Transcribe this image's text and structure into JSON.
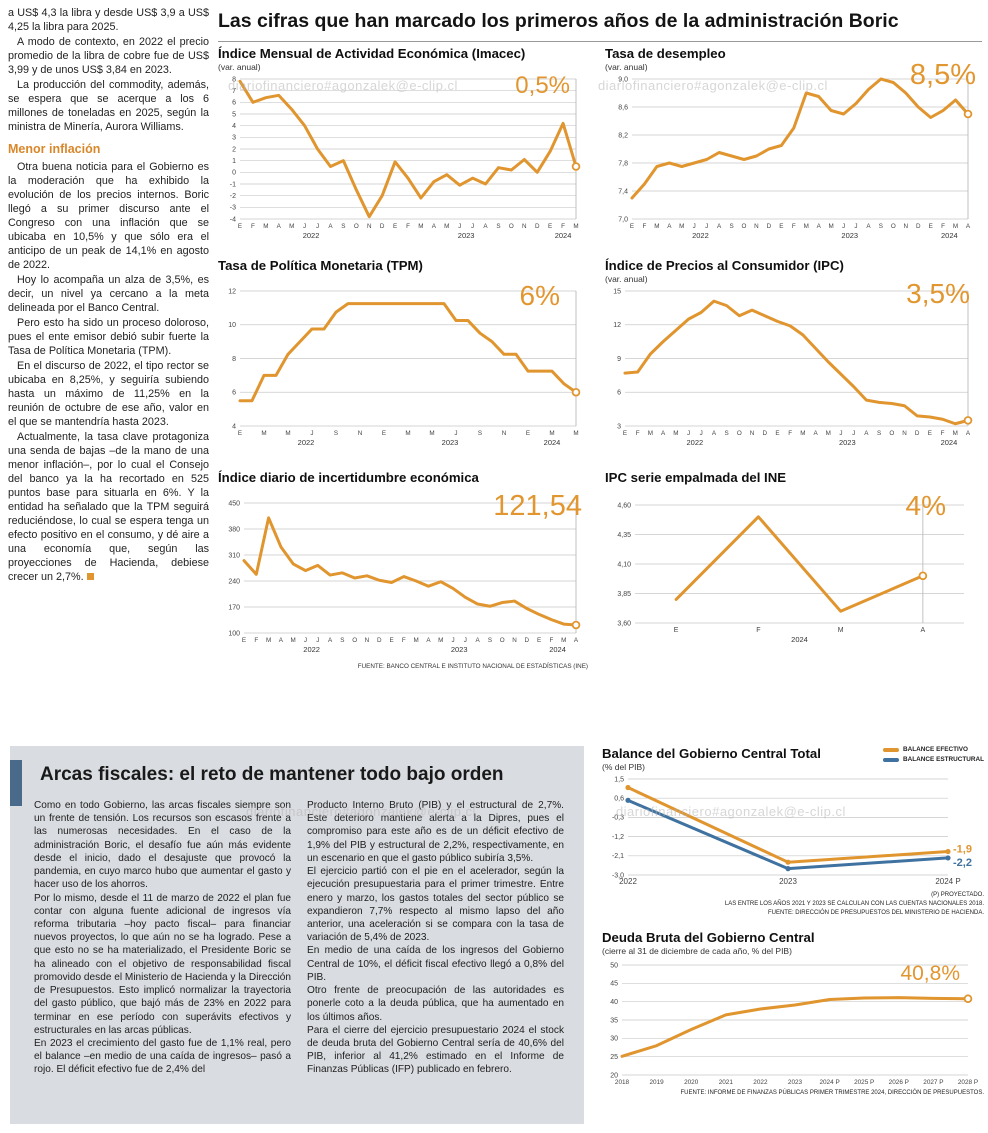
{
  "main_title": "Las cifras que han marcado los primeros años de la administración Boric",
  "watermark": "diariofinanciero#agonzalek@e-clip.cl",
  "colors": {
    "accent_orange": "#E0952F",
    "accent_blue": "#3F72A0",
    "box_background": "#D9DCE0",
    "box_accent_bar": "#4A6A8C"
  },
  "article": {
    "p0": "a US$ 4,3 la libra y desde US$ 3,9 a US$ 4,25 la libra para 2025.",
    "p1": "A modo de contexto, en 2022 el precio promedio de la libra de cobre fue de US$ 3,99 y de unos US$ 3,84 en 2023.",
    "p2": "La producción del commodity, además, se espera que se acerque a los 6 millones de toneladas en 2025, según la ministra de Minería, Aurora Williams.",
    "heading": "Menor inflación",
    "p3": "Otra buena noticia para el Gobierno es la moderación que ha exhibido la evolución de los precios internos. Boric llegó a su primer discurso ante el Congreso con una inflación que se ubicaba en 10,5% y que sólo era el anticipo de un peak de 14,1% en agosto de 2022.",
    "p4": "Hoy lo acompaña un alza de 3,5%, es decir, un nivel ya cercano a la meta delineada por el Banco Central.",
    "p5": "Pero esto ha sido un proceso doloroso, pues el ente emisor debió subir fuerte la Tasa de Política Monetaria (TPM).",
    "p6": "En el discurso de 2022, el tipo rector se ubicaba en 8,25%, y seguiría subiendo hasta un máximo de 11,25% en la reunión de octubre de ese año, valor en el que se mantendría hasta 2023.",
    "p7": "Actualmente, la tasa clave protagoniza una senda de bajas –de la mano de una menor inflación–, por lo cual el Consejo del banco ya la ha recortado en 525 puntos base para situarla en 6%. Y la entidad ha señalado que la TPM seguirá reduciéndose, lo cual se espera tenga un efecto positivo en el consumo, y dé aire a una economía que, según las proyecciones de Hacienda, debiese crecer un 2,7%."
  },
  "sources": {
    "ine": "FUENTE: BANCO CENTRAL E INSTITUTO NACIONAL DE ESTADÍSTICAS (INE)"
  },
  "box": {
    "title": "Arcas fiscales: el reto de mantener todo bajo orden",
    "col1": {
      "p0": "Como en todo Gobierno, las arcas fiscales siempre son un frente de tensión. Los recursos son escasos frente a las numerosas necesidades. En el caso de la administración Boric, el desafío fue aún más evidente desde el inicio, dado el desajuste que provocó la pandemia, en cuyo marco hubo que aumentar el gasto y hacer uso de los ahorros.",
      "p1": "Por lo mismo, desde el 11 de marzo de 2022 el plan fue contar con alguna fuente adicional de ingresos vía reforma tributaria –hoy pacto fiscal– para financiar nuevos proyectos, lo que aún no se ha logrado. Pese a que esto no se ha materializado, el Presidente Boric se ha alineado con el objetivo de responsabilidad fiscal promovido desde el Ministerio de Hacienda y la Dirección de Presupuestos. Esto implicó normalizar la trayectoria del gasto público, que bajó más de 23% en 2022 para terminar en ese período con superávits efectivos y estructurales en las arcas públicas.",
      "p2": "En 2023 el crecimiento del gasto fue de 1,1% real, pero el balance –en medio de una caída de ingresos– pasó a rojo. El déficit efectivo fue de 2,4% del"
    },
    "col2": {
      "p0": "Producto Interno Bruto (PIB) y el estructural de 2,7%. Este deterioro mantiene alerta a la Dipres, pues el compromiso para este año es de un déficit efectivo de 1,9% del PIB y estructural de 2,2%, respectivamente, en un escenario en que el gasto público subiría 3,5%.",
      "p1": "El ejercicio partió con el pie en el acelerador, según la ejecución presupuestaria para el primer trimestre. Entre enero y marzo, los gastos totales del sector público se expandieron 7,7% respecto al mismo lapso del año anterior, una aceleración si se compara con la tasa de variación de 5,4% de 2023.",
      "p2": "En medio de una caída de los ingresos del Gobierno Central de 10%, el déficit fiscal efectivo llegó a 0,8% del PIB.",
      "p3": "Otro frente de preocupación de las autoridades es ponerle coto a la deuda pública, que ha aumentado en los últimos años.",
      "p4": "Para el cierre del ejercicio presupuestario 2024 el stock de deuda bruta del Gobierno Central sería de 40,6% del PIB, inferior al 41,2% estimado en el Informe de Finanzas Públicas (IFP) publicado en febrero."
    }
  },
  "chart_data": [
    {
      "id": "imacec",
      "type": "line",
      "title": "Índice Mensual de Actividad Económica (Imacec)",
      "subtitle": "(var. anual)",
      "callout": "0,5%",
      "ylim": [
        -4,
        8
      ],
      "yticks": [
        8,
        7,
        6,
        5,
        4,
        3,
        2,
        1,
        0,
        -1,
        -2,
        -3,
        -4
      ],
      "ytick_labels": [
        "8",
        "7",
        "6",
        "5",
        "4",
        "3",
        "2",
        "1",
        "0",
        "-1",
        "-2",
        "-3",
        "-4"
      ],
      "x_labels": [
        "E",
        "F",
        "M",
        "A",
        "M",
        "J",
        "J",
        "A",
        "S",
        "O",
        "N",
        "D",
        "E",
        "F",
        "M",
        "A",
        "M",
        "J",
        "J",
        "A",
        "S",
        "O",
        "N",
        "D",
        "E",
        "F",
        "M"
      ],
      "years": [
        {
          "label": "2022",
          "from": 0,
          "to": 11
        },
        {
          "label": "2023",
          "from": 12,
          "to": 23
        },
        {
          "label": "2024",
          "from": 24,
          "to": 26
        }
      ],
      "x_mode": "point",
      "marker_last": true,
      "layout": {
        "ml": 22,
        "mr": 12,
        "mt": 6,
        "mb": 24
      },
      "series": [
        {
          "name": "Imacec var. anual",
          "color": "#E0952F",
          "width": 3,
          "end_circle": true,
          "values": [
            7.8,
            6.0,
            6.4,
            6.6,
            5.4,
            4.0,
            2.0,
            0.5,
            1.0,
            -1.5,
            -3.8,
            -2.0,
            0.9,
            -0.5,
            -2.2,
            -0.8,
            -0.2,
            -1.1,
            -0.5,
            -1.0,
            0.4,
            0.2,
            1.1,
            0.0,
            1.8,
            4.2,
            0.5
          ]
        }
      ]
    },
    {
      "id": "desempleo",
      "type": "line",
      "title": "Tasa de desempleo",
      "subtitle": "(var. anual)",
      "callout": "8,5%",
      "ylim": [
        7.0,
        9.0
      ],
      "yticks": [
        9.0,
        8.6,
        8.2,
        7.8,
        7.4,
        7.0
      ],
      "ytick_labels": [
        "9,0",
        "8,6",
        "8,2",
        "7,8",
        "7,4",
        "7,0"
      ],
      "x_labels": [
        "E",
        "F",
        "M",
        "A",
        "M",
        "J",
        "J",
        "A",
        "S",
        "O",
        "N",
        "D",
        "E",
        "F",
        "M",
        "A",
        "M",
        "J",
        "J",
        "A",
        "S",
        "O",
        "N",
        "D",
        "E",
        "F",
        "M",
        "A"
      ],
      "years": [
        {
          "label": "2022",
          "from": 0,
          "to": 11
        },
        {
          "label": "2023",
          "from": 12,
          "to": 23
        },
        {
          "label": "2024",
          "from": 24,
          "to": 27
        }
      ],
      "x_mode": "point",
      "marker_last": true,
      "layout": {
        "ml": 27,
        "mr": 12,
        "mt": 6,
        "mb": 24
      },
      "series": [
        {
          "name": "Tasa de desempleo",
          "color": "#E0952F",
          "width": 3,
          "end_circle": true,
          "values": [
            7.3,
            7.5,
            7.75,
            7.8,
            7.75,
            7.8,
            7.85,
            7.95,
            7.9,
            7.85,
            7.9,
            8.0,
            8.05,
            8.3,
            8.8,
            8.75,
            8.55,
            8.5,
            8.65,
            8.85,
            9.0,
            8.95,
            8.8,
            8.6,
            8.45,
            8.55,
            8.7,
            8.5
          ]
        }
      ]
    },
    {
      "id": "tpm",
      "type": "line",
      "title": "Tasa de Política Monetaria (TPM)",
      "subtitle": "",
      "callout": "6%",
      "ylim": [
        4,
        12
      ],
      "yticks": [
        12,
        10,
        8,
        6,
        4
      ],
      "ytick_labels": [
        "12",
        "10",
        "8",
        "6",
        "4"
      ],
      "x_labels": [
        "E",
        "",
        "M",
        "",
        "M",
        "",
        "J",
        "",
        "S",
        "",
        "N",
        "",
        "E",
        "",
        "M",
        "",
        "M",
        "",
        "J",
        "",
        "S",
        "",
        "N",
        "",
        "E",
        "",
        "M",
        "",
        "M"
      ],
      "years": [
        {
          "label": "2022",
          "from": 0,
          "to": 11
        },
        {
          "label": "2023",
          "from": 12,
          "to": 23
        },
        {
          "label": "2024",
          "from": 24,
          "to": 28
        }
      ],
      "x_mode": "point",
      "marker_last": true,
      "layout": {
        "ml": 22,
        "mr": 12,
        "mt": 6,
        "mb": 24
      },
      "series": [
        {
          "name": "TPM",
          "color": "#E0952F",
          "width": 3,
          "end_circle": true,
          "values": [
            5.5,
            5.5,
            7.0,
            7.0,
            8.25,
            9.0,
            9.75,
            9.75,
            10.75,
            11.25,
            11.25,
            11.25,
            11.25,
            11.25,
            11.25,
            11.25,
            11.25,
            11.25,
            10.25,
            10.25,
            9.5,
            9.0,
            8.25,
            8.25,
            7.25,
            7.25,
            7.25,
            6.5,
            6.0
          ]
        }
      ]
    },
    {
      "id": "ipc",
      "type": "line",
      "title": "Índice de Precios al Consumidor (IPC)",
      "subtitle": "(var. anual)",
      "callout": "3,5%",
      "ylim": [
        3,
        15
      ],
      "yticks": [
        15,
        12,
        9,
        6,
        3
      ],
      "ytick_labels": [
        "15",
        "12",
        "9",
        "6",
        "3"
      ],
      "x_labels": [
        "E",
        "F",
        "M",
        "A",
        "M",
        "J",
        "J",
        "A",
        "S",
        "O",
        "N",
        "D",
        "E",
        "F",
        "M",
        "A",
        "M",
        "J",
        "J",
        "A",
        "S",
        "O",
        "N",
        "D",
        "E",
        "F",
        "M",
        "A"
      ],
      "years": [
        {
          "label": "2022",
          "from": 0,
          "to": 11
        },
        {
          "label": "2023",
          "from": 12,
          "to": 23
        },
        {
          "label": "2024",
          "from": 24,
          "to": 27
        }
      ],
      "x_mode": "point",
      "marker_last": true,
      "layout": {
        "ml": 20,
        "mr": 12,
        "mt": 6,
        "mb": 24
      },
      "series": [
        {
          "name": "IPC var. anual",
          "color": "#E0952F",
          "width": 3,
          "end_circle": true,
          "values": [
            7.7,
            7.8,
            9.4,
            10.5,
            11.5,
            12.5,
            13.1,
            14.1,
            13.7,
            12.8,
            13.3,
            12.8,
            12.3,
            11.9,
            11.1,
            9.9,
            8.7,
            7.6,
            6.5,
            5.3,
            5.1,
            5.0,
            4.8,
            3.9,
            3.8,
            3.6,
            3.2,
            3.5
          ]
        }
      ]
    },
    {
      "id": "incertidumbre",
      "type": "line",
      "title": "Índice diario de incertidumbre económica",
      "subtitle": "",
      "callout": "121,54",
      "ylim": [
        100,
        450
      ],
      "yticks": [
        450,
        380,
        310,
        240,
        170,
        100
      ],
      "ytick_labels": [
        "450",
        "380",
        "310",
        "240",
        "170",
        "100"
      ],
      "x_labels": [
        "E",
        "F",
        "M",
        "A",
        "M",
        "J",
        "J",
        "A",
        "S",
        "O",
        "N",
        "D",
        "E",
        "F",
        "M",
        "A",
        "M",
        "J",
        "J",
        "A",
        "S",
        "O",
        "N",
        "D",
        "E",
        "F",
        "M",
        "A"
      ],
      "years": [
        {
          "label": "2022",
          "from": 0,
          "to": 11
        },
        {
          "label": "2023",
          "from": 12,
          "to": 23
        },
        {
          "label": "2024",
          "from": 24,
          "to": 27
        }
      ],
      "x_mode": "point",
      "marker_last": true,
      "layout": {
        "ml": 26,
        "mr": 12,
        "mt": 6,
        "mb": 24
      },
      "series": [
        {
          "name": "Incertidumbre económica",
          "color": "#E0952F",
          "width": 3,
          "end_circle": true,
          "values": [
            295,
            258,
            410,
            332,
            286,
            268,
            282,
            256,
            262,
            248,
            254,
            242,
            236,
            252,
            240,
            226,
            238,
            220,
            196,
            178,
            172,
            182,
            186,
            166,
            150,
            136,
            124,
            121.54
          ]
        }
      ]
    },
    {
      "id": "ipc_serie_empalmada",
      "type": "line",
      "title": "IPC serie empalmada del INE",
      "subtitle": "",
      "callout": "4%",
      "ylim": [
        3.6,
        4.6
      ],
      "yticks": [
        4.6,
        4.35,
        4.1,
        3.85,
        3.6
      ],
      "ytick_labels": [
        "4,60",
        "4,35",
        "4,10",
        "3,85",
        "3,60"
      ],
      "x_labels": [
        "E",
        "F",
        "M",
        "A"
      ],
      "x_font": 7,
      "years": [
        {
          "label": "2024",
          "from": 0,
          "to": 3
        }
      ],
      "x_mode": "band",
      "marker_last": true,
      "layout": {
        "ml": 30,
        "mr": 16,
        "mt": 8,
        "mb": 24
      },
      "series": [
        {
          "name": "IPC serie empalmada",
          "color": "#E0952F",
          "width": 3,
          "end_circle": true,
          "values": [
            3.8,
            4.5,
            3.7,
            4.0
          ]
        }
      ]
    },
    {
      "id": "balance_gobierno_central",
      "type": "line",
      "title": "Balance del Gobierno Central Total",
      "subtitle": "(% del PIB)",
      "legend": [
        {
          "label": "BALANCE EFECTIVO",
          "color": "#E0952F"
        },
        {
          "label": "BALANCE ESTRUCTURAL",
          "color": "#3F72A0"
        }
      ],
      "ylim": [
        -3.0,
        1.5
      ],
      "yticks": [
        1.5,
        0.6,
        -0.3,
        -1.2,
        -2.1,
        -3.0
      ],
      "ytick_labels": [
        "1,5",
        "0,6",
        "-0,3",
        "-1,2",
        "-2,1",
        "-3,0"
      ],
      "x_labels": [
        "2022",
        "2023",
        "2024 P"
      ],
      "x_font": 8,
      "x_mode": "point",
      "marker_last": false,
      "layout": {
        "ml": 26,
        "mr": 36,
        "mt": 6,
        "mb": 16
      },
      "series": [
        {
          "name": "Balance efectivo",
          "color": "#E0952F",
          "width": 3,
          "dots": true,
          "end_label": "-1,9",
          "end_label_dy": 1,
          "values": [
            1.1,
            -2.4,
            -1.9
          ]
        },
        {
          "name": "Balance estructural",
          "color": "#3F72A0",
          "width": 3,
          "dots": true,
          "end_label": "-2,2",
          "end_label_dy": 8,
          "values": [
            0.5,
            -2.7,
            -2.2
          ]
        }
      ],
      "footnotes": [
        "(P) PROYECTADO.",
        "LAS ENTRE LOS AÑOS 2021 Y 2023 SE CALCULAN CON LAS CUENTAS NACIONALES 2018.",
        "FUENTE: DIRECCIÓN DE PRESUPUESTOS DEL MINISTERIO DE HACIENDA."
      ]
    },
    {
      "id": "deuda_bruta",
      "type": "line",
      "title": "Deuda Bruta del Gobierno Central",
      "subtitle": "(cierre al 31 de diciembre de cada año, % del PIB)",
      "callout": "40,8%",
      "ylim": [
        20,
        50
      ],
      "yticks": [
        50,
        45,
        40,
        35,
        30,
        25,
        20
      ],
      "ytick_labels": [
        "50",
        "45",
        "40",
        "35",
        "30",
        "25",
        "20"
      ],
      "x_labels": [
        "2018",
        "2019",
        "2020",
        "2021",
        "2022",
        "2023",
        "2024 P",
        "2025 P",
        "2026 P",
        "2027 P",
        "2028 P"
      ],
      "x_font": 6.4,
      "x_mode": "point",
      "marker_last": false,
      "layout": {
        "ml": 20,
        "mr": 16,
        "mt": 8,
        "mb": 14
      },
      "series": [
        {
          "name": "Deuda bruta",
          "color": "#E0952F",
          "width": 3,
          "end_circle": true,
          "values": [
            25.1,
            28.0,
            32.4,
            36.4,
            38.0,
            39.1,
            40.6,
            41.0,
            41.1,
            40.9,
            40.8
          ]
        }
      ],
      "footnote": "FUENTE: INFORME DE FINANZAS PÚBLICAS PRIMER TRIMESTRE 2024, DIRECCIÓN DE PRESUPUESTOS."
    }
  ]
}
